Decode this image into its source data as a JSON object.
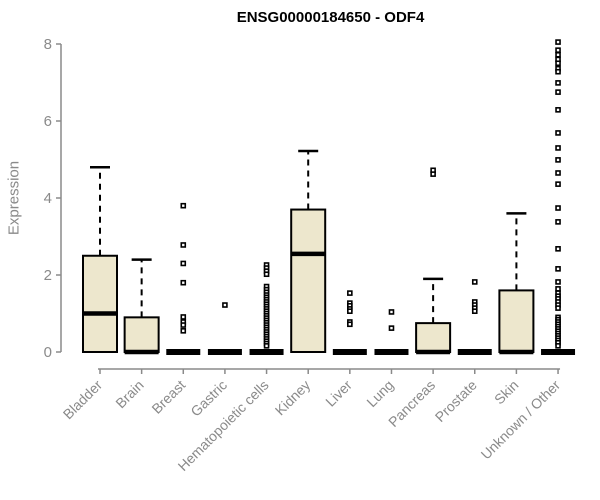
{
  "chart_data": {
    "type": "box",
    "title": "ENSG00000184650 - ODF4",
    "ylabel": "Expression",
    "xlabel": "",
    "ylim": [
      0,
      8
    ],
    "yticks": [
      0,
      2,
      4,
      6,
      8
    ],
    "grid": false,
    "legend": false,
    "categories": [
      "Bladder",
      "Brain",
      "Breast",
      "Gastric",
      "Hematopoietic cells",
      "Kidney",
      "Liver",
      "Lung",
      "Pancreas",
      "Prostate",
      "Skin",
      "Unknown / Other"
    ],
    "boxes": [
      {
        "category": "Bladder",
        "whisker_low": 0,
        "q1": 0,
        "median": 1.0,
        "q3": 2.5,
        "whisker_high": 4.8,
        "outliers": []
      },
      {
        "category": "Brain",
        "whisker_low": 0,
        "q1": 0,
        "median": 0,
        "q3": 0.9,
        "whisker_high": 2.4,
        "outliers": []
      },
      {
        "category": "Breast",
        "whisker_low": 0,
        "q1": 0,
        "median": 0,
        "q3": 0,
        "whisker_high": 0,
        "outliers": [
          3.8,
          2.78,
          2.3,
          1.8,
          0.91,
          0.78,
          0.7,
          0.55
        ]
      },
      {
        "category": "Gastric",
        "whisker_low": 0,
        "q1": 0,
        "median": 0,
        "q3": 0,
        "whisker_high": 0,
        "outliers": [
          1.22
        ]
      },
      {
        "category": "Hematopoietic cells",
        "whisker_low": 0,
        "q1": 0,
        "median": 0,
        "q3": 0,
        "whisker_high": 0,
        "outliers": [
          2.26,
          2.18,
          2.1,
          2.02,
          1.7,
          1.62,
          1.55,
          1.48,
          1.42,
          1.36,
          1.3,
          1.24,
          1.18,
          1.12,
          1.06,
          1.0,
          0.94,
          0.88,
          0.82,
          0.76,
          0.7,
          0.64,
          0.58,
          0.52,
          0.46,
          0.4,
          0.34,
          0.28,
          0.22,
          0.16
        ]
      },
      {
        "category": "Kidney",
        "whisker_low": 0,
        "q1": 0,
        "median": 2.55,
        "q3": 3.7,
        "whisker_high": 5.22,
        "outliers": []
      },
      {
        "category": "Liver",
        "whisker_low": 0,
        "q1": 0,
        "median": 0,
        "q3": 0,
        "whisker_high": 0,
        "outliers": [
          1.53,
          1.27,
          1.2,
          1.12,
          1.06,
          0.78,
          0.72
        ]
      },
      {
        "category": "Lung",
        "whisker_low": 0,
        "q1": 0,
        "median": 0,
        "q3": 0,
        "whisker_high": 0,
        "outliers": [
          1.04,
          0.62
        ]
      },
      {
        "category": "Pancreas",
        "whisker_low": 0,
        "q1": 0,
        "median": 0,
        "q3": 0.75,
        "whisker_high": 1.9,
        "outliers": [
          4.72,
          4.62
        ]
      },
      {
        "category": "Prostate",
        "whisker_low": 0,
        "q1": 0,
        "median": 0,
        "q3": 0,
        "whisker_high": 0,
        "outliers": [
          1.82,
          1.3,
          1.22,
          1.14,
          1.06
        ]
      },
      {
        "category": "Skin",
        "whisker_low": 0,
        "q1": 0,
        "median": 0,
        "q3": 1.6,
        "whisker_high": 3.6,
        "outliers": []
      },
      {
        "category": "Unknown / Other",
        "whisker_low": 0,
        "q1": 0,
        "median": 0,
        "q3": 0,
        "whisker_high": 0,
        "outliers": [
          8.05,
          7.84,
          7.72,
          7.6,
          7.5,
          7.36,
          7.28,
          6.99,
          6.75,
          6.29,
          5.69,
          5.3,
          4.99,
          4.65,
          4.36,
          3.74,
          3.38,
          2.68,
          2.16,
          1.82,
          1.64,
          1.53,
          1.45,
          1.38,
          1.3,
          1.22,
          1.14,
          0.9,
          0.84,
          0.78,
          0.72,
          0.66,
          0.6,
          0.54,
          0.48,
          0.42,
          0.36,
          0.3,
          0.24,
          0.16
        ]
      }
    ],
    "colors": {
      "box_fill": "#EDE7CD",
      "box_border": "#000000",
      "median": "#000000",
      "axis": "#8A8A8A",
      "title": "#000000",
      "background": "#FFFFFF"
    }
  }
}
